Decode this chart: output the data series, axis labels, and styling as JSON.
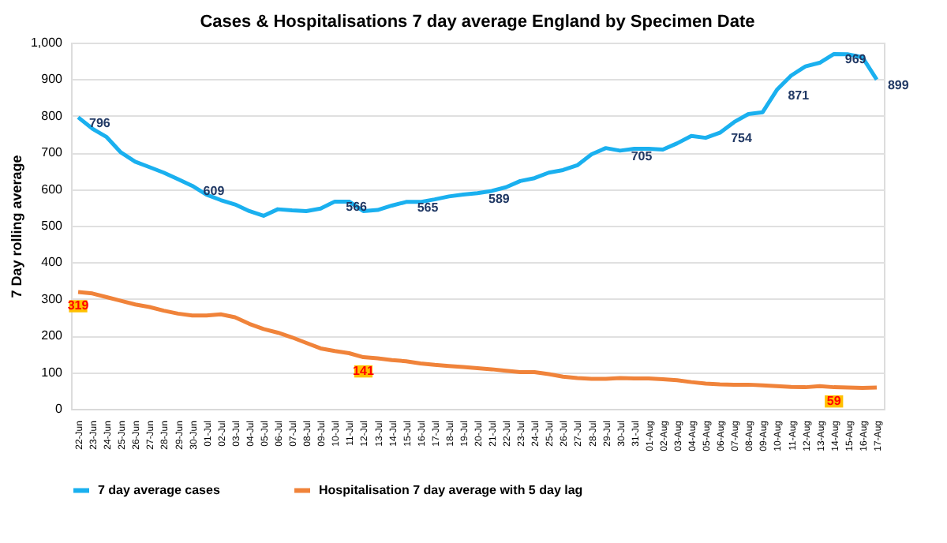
{
  "chart_data": {
    "type": "line",
    "title": "Cases & Hospitalisations 7 day average England by Specimen Date",
    "ylabel": "7  Day rolling average",
    "categories": [
      "22-Jun",
      "23-Jun",
      "24-Jun",
      "25-Jun",
      "26-Jun",
      "27-Jun",
      "28-Jun",
      "29-Jun",
      "30-Jun",
      "01-Jul",
      "02-Jul",
      "03-Jul",
      "04-Jul",
      "05-Jul",
      "06-Jul",
      "07-Jul",
      "08-Jul",
      "09-Jul",
      "10-Jul",
      "11-Jul",
      "12-Jul",
      "13-Jul",
      "14-Jul",
      "15-Jul",
      "16-Jul",
      "17-Jul",
      "18-Jul",
      "19-Jul",
      "20-Jul",
      "21-Jul",
      "22-Jul",
      "23-Jul",
      "24-Jul",
      "25-Jul",
      "26-Jul",
      "27-Jul",
      "28-Jul",
      "29-Jul",
      "30-Jul",
      "31-Jul",
      "01-Aug",
      "02-Aug",
      "03-Aug",
      "04-Aug",
      "05-Aug",
      "06-Aug",
      "07-Aug",
      "08-Aug",
      "09-Aug",
      "10-Aug",
      "11-Aug",
      "12-Aug",
      "13-Aug",
      "14-Aug",
      "15-Aug",
      "16-Aug",
      "17-Aug"
    ],
    "series": [
      {
        "name": "7 day average cases",
        "color": "#1ab0ef",
        "values": [
          796,
          765,
          742,
          700,
          675,
          660,
          645,
          627,
          609,
          585,
          570,
          558,
          540,
          527,
          545,
          542,
          540,
          547,
          566,
          566,
          540,
          543,
          555,
          565,
          565,
          572,
          580,
          585,
          589,
          595,
          605,
          622,
          630,
          645,
          652,
          665,
          695,
          712,
          705,
          710,
          710,
          708,
          725,
          745,
          740,
          754,
          783,
          805,
          810,
          871,
          910,
          935,
          945,
          969,
          968,
          960,
          899
        ],
        "value_labels": [
          "796",
          null,
          null,
          null,
          null,
          null,
          null,
          null,
          "609",
          null,
          null,
          null,
          null,
          null,
          null,
          null,
          null,
          null,
          "566",
          null,
          null,
          null,
          null,
          "565",
          null,
          null,
          null,
          null,
          "589",
          null,
          null,
          null,
          null,
          null,
          null,
          null,
          null,
          null,
          "705",
          null,
          null,
          null,
          null,
          null,
          null,
          "754",
          null,
          null,
          null,
          "871",
          null,
          null,
          null,
          "969",
          null,
          null,
          "899"
        ]
      },
      {
        "name": "Hospitalisation 7 day average with 5 day lag",
        "color": "#f0833a",
        "values": [
          319,
          315,
          305,
          295,
          285,
          278,
          268,
          260,
          255,
          255,
          258,
          250,
          232,
          218,
          208,
          195,
          180,
          165,
          158,
          152,
          141,
          138,
          133,
          130,
          124,
          120,
          117,
          114,
          111,
          108,
          104,
          100,
          100,
          95,
          88,
          84,
          82,
          82,
          84,
          83,
          83,
          81,
          78,
          73,
          69,
          67,
          66,
          66,
          64,
          62,
          60,
          59,
          62,
          59,
          58,
          57,
          58
        ],
        "value_labels": [
          "319",
          null,
          null,
          null,
          null,
          null,
          null,
          null,
          null,
          null,
          null,
          null,
          null,
          null,
          null,
          null,
          null,
          null,
          null,
          null,
          "141",
          null,
          null,
          null,
          null,
          null,
          null,
          null,
          null,
          null,
          null,
          null,
          null,
          null,
          null,
          null,
          null,
          null,
          null,
          null,
          null,
          null,
          null,
          null,
          null,
          null,
          null,
          null,
          null,
          null,
          null,
          null,
          null,
          "59",
          null,
          null,
          null
        ]
      }
    ],
    "ylim": [
      0,
      1000
    ],
    "yticks": [
      0,
      100,
      200,
      300,
      400,
      500,
      600,
      700,
      800,
      900,
      {
        "value": 1000,
        "label": "1,000"
      }
    ],
    "grid": "y",
    "legend": "bottom",
    "line_style": "solid",
    "marker": "none"
  }
}
